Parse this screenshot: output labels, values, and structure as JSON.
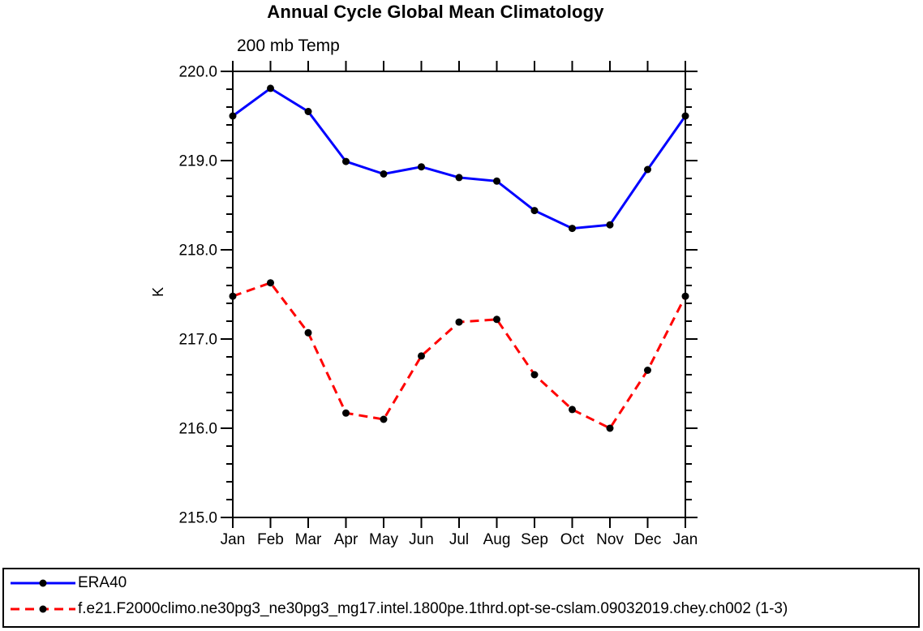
{
  "title": "Annual Cycle Global Mean Climatology",
  "chart_data": {
    "type": "line",
    "title": "Annual Cycle Global Mean Climatology",
    "subtitle": "200 mb Temp",
    "ylabel": "K",
    "categories": [
      "Jan",
      "Feb",
      "Mar",
      "Apr",
      "May",
      "Jun",
      "Jul",
      "Aug",
      "Sep",
      "Oct",
      "Nov",
      "Dec",
      "Jan"
    ],
    "ylim": [
      215.0,
      220.0
    ],
    "y_major_interval": 1.0,
    "y_minor_interval": 0.2,
    "ytick_labels": [
      "220.0",
      "219.0",
      "218.0",
      "217.0",
      "216.0",
      "215.0"
    ],
    "grid": false,
    "legend_position": "bottom-outside-box",
    "axis_color": "#000000",
    "series": [
      {
        "name": "ERA40",
        "color": "#0000ff",
        "line_style": "solid",
        "marker": "filled-circle",
        "marker_color": "#000000",
        "values": [
          219.5,
          219.81,
          219.55,
          218.99,
          218.85,
          218.93,
          218.81,
          218.77,
          218.44,
          218.24,
          218.28,
          218.9,
          219.5
        ]
      },
      {
        "name": "f.e21.F2000climo.ne30pg3_ne30pg3_mg17.intel.1800pe.1thrd.opt-se-cslam.09032019.chey.ch002 (1-3)",
        "color": "#ff0000",
        "line_style": "dashed",
        "marker": "filled-circle",
        "marker_color": "#000000",
        "values": [
          217.48,
          217.63,
          217.07,
          216.17,
          216.1,
          216.81,
          217.19,
          217.22,
          216.6,
          216.21,
          216.0,
          216.65,
          217.48
        ]
      }
    ]
  }
}
